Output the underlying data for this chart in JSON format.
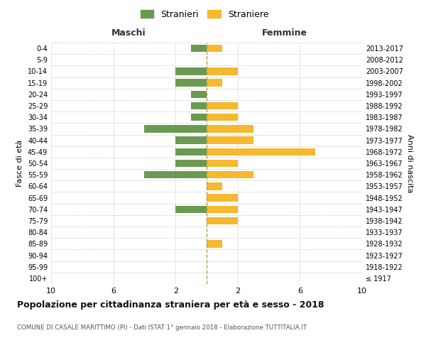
{
  "age_groups": [
    "100+",
    "95-99",
    "90-94",
    "85-89",
    "80-84",
    "75-79",
    "70-74",
    "65-69",
    "60-64",
    "55-59",
    "50-54",
    "45-49",
    "40-44",
    "35-39",
    "30-34",
    "25-29",
    "20-24",
    "15-19",
    "10-14",
    "5-9",
    "0-4"
  ],
  "birth_years": [
    "≤ 1917",
    "1918-1922",
    "1923-1927",
    "1928-1932",
    "1933-1937",
    "1938-1942",
    "1943-1947",
    "1948-1952",
    "1953-1957",
    "1958-1962",
    "1963-1967",
    "1968-1972",
    "1973-1977",
    "1978-1982",
    "1983-1987",
    "1988-1992",
    "1993-1997",
    "1998-2002",
    "2003-2007",
    "2008-2012",
    "2013-2017"
  ],
  "maschi_values": [
    0,
    0,
    0,
    0,
    0,
    0,
    2,
    0,
    0,
    4,
    2,
    2,
    2,
    4,
    1,
    1,
    1,
    2,
    2,
    0,
    1
  ],
  "femmine_values": [
    0,
    0,
    0,
    1,
    0,
    2,
    2,
    2,
    1,
    3,
    2,
    7,
    3,
    3,
    2,
    2,
    0,
    1,
    2,
    0,
    1
  ],
  "maschi_color": "#6a9a52",
  "femmine_color": "#f5b82e",
  "title": "Popolazione per cittadinanza straniera per età e sesso - 2018",
  "subtitle": "COMUNE DI CASALE MARITTIMO (PI) - Dati ISTAT 1° gennaio 2018 - Elaborazione TUTTITALIA.IT",
  "legend_maschi": "Stranieri",
  "legend_femmine": "Straniere",
  "xlabel_left": "Maschi",
  "xlabel_right": "Femmine",
  "ylabel": "Fasce di età",
  "ylabel_right": "Anni di nascita",
  "xlim": 10,
  "background_color": "#ffffff",
  "grid_color": "#cccccc"
}
